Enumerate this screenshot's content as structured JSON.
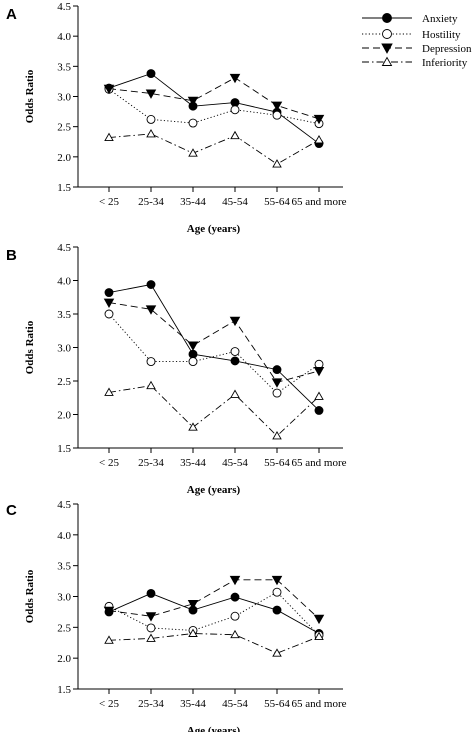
{
  "chart_data": [
    {
      "type": "line",
      "panel": "A",
      "xlabel": "Age (years)",
      "ylabel": "Odds Ratio",
      "categories": [
        "< 25",
        "25-34",
        "35-44",
        "45-54",
        "55-64",
        "65 and more"
      ],
      "ylim": [
        1.5,
        4.5
      ],
      "yticks": [
        "1.5",
        "2.0",
        "2.5",
        "3.0",
        "3.5",
        "4.0",
        "4.5"
      ],
      "legend_position": "top-right",
      "grid": false,
      "series": [
        {
          "name": "Anxiety",
          "values": [
            3.14,
            3.38,
            2.84,
            2.9,
            2.74,
            2.22
          ]
        },
        {
          "name": "Hostility",
          "values": [
            3.12,
            2.62,
            2.56,
            2.78,
            2.69,
            2.55
          ]
        },
        {
          "name": "Depression",
          "values": [
            3.13,
            3.05,
            2.93,
            3.31,
            2.85,
            2.63
          ]
        },
        {
          "name": "Inferiority",
          "values": [
            2.32,
            2.38,
            2.06,
            2.35,
            1.88,
            2.28
          ]
        }
      ]
    },
    {
      "type": "line",
      "panel": "B",
      "xlabel": "Age (years)",
      "ylabel": "Odds Ratio",
      "categories": [
        "< 25",
        "25-34",
        "35-44",
        "45-54",
        "55-64",
        "65 and more"
      ],
      "ylim": [
        1.5,
        4.5
      ],
      "yticks": [
        "1.5",
        "2.0",
        "2.5",
        "3.0",
        "3.5",
        "4.0",
        "4.5"
      ],
      "grid": false,
      "series": [
        {
          "name": "Anxiety",
          "values": [
            3.82,
            3.94,
            2.9,
            2.8,
            2.67,
            2.06
          ]
        },
        {
          "name": "Hostility",
          "values": [
            3.5,
            2.79,
            2.79,
            2.94,
            2.32,
            2.75
          ]
        },
        {
          "name": "Depression",
          "values": [
            3.67,
            3.57,
            3.03,
            3.4,
            2.48,
            2.65
          ]
        },
        {
          "name": "Inferiority",
          "values": [
            2.33,
            2.43,
            1.81,
            2.3,
            1.68,
            2.27
          ]
        }
      ]
    },
    {
      "type": "line",
      "panel": "C",
      "xlabel": "Age (years)",
      "ylabel": "Odds Ratio",
      "categories": [
        "< 25",
        "25-34",
        "35-44",
        "45-54",
        "55-64",
        "65 and more"
      ],
      "ylim": [
        1.5,
        4.5
      ],
      "yticks": [
        "1.5",
        "2.0",
        "2.5",
        "3.0",
        "3.5",
        "4.0",
        "4.5"
      ],
      "grid": false,
      "series": [
        {
          "name": "Anxiety",
          "values": [
            2.75,
            3.05,
            2.78,
            2.99,
            2.78,
            2.4
          ]
        },
        {
          "name": "Hostility",
          "values": [
            2.84,
            2.49,
            2.45,
            2.68,
            3.07,
            2.37
          ]
        },
        {
          "name": "Depression",
          "values": [
            2.77,
            2.68,
            2.88,
            3.27,
            3.27,
            2.64
          ]
        },
        {
          "name": "Inferiority",
          "values": [
            2.29,
            2.32,
            2.4,
            2.38,
            2.08,
            2.35
          ]
        }
      ]
    }
  ]
}
